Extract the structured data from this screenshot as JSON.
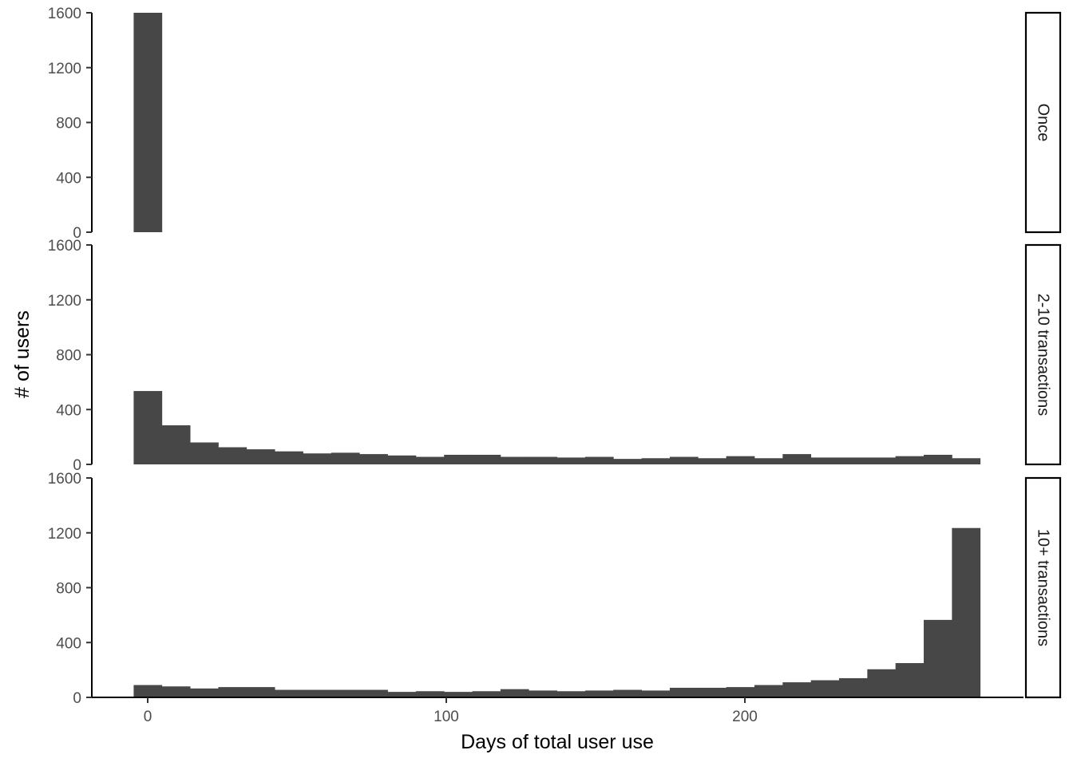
{
  "chart_data": {
    "type": "bar",
    "subtype": "faceted-histogram",
    "xlabel": "Days of total user use",
    "ylabel": "# of users",
    "xlim": [
      -10,
      285
    ],
    "ylim": [
      0,
      1600
    ],
    "x_ticks": [
      0,
      100,
      200
    ],
    "x_tick_labels": [
      "0",
      "100",
      "200"
    ],
    "y_ticks": [
      0,
      400,
      800,
      1200,
      1600
    ],
    "y_tick_labels": [
      "0",
      "400",
      "800",
      "1200",
      "1600"
    ],
    "bin_width": 9.45,
    "first_bin_start": -4.7,
    "grid": false,
    "legend": "none",
    "bar_color": "#474747",
    "facets": [
      {
        "label": "Once",
        "values": [
          1600,
          0,
          0,
          0,
          0,
          0,
          0,
          0,
          0,
          0,
          0,
          0,
          0,
          0,
          0,
          0,
          0,
          0,
          0,
          0,
          0,
          0,
          0,
          0,
          0,
          0,
          0,
          0,
          0,
          0
        ]
      },
      {
        "label": "2-10 transactions",
        "values": [
          535,
          285,
          160,
          125,
          110,
          95,
          80,
          85,
          75,
          65,
          55,
          70,
          70,
          55,
          55,
          50,
          55,
          40,
          45,
          55,
          45,
          60,
          45,
          75,
          50,
          50,
          50,
          60,
          70,
          45
        ]
      },
      {
        "label": "10+ transactions",
        "values": [
          90,
          80,
          65,
          75,
          75,
          55,
          55,
          55,
          55,
          40,
          45,
          40,
          45,
          60,
          50,
          45,
          50,
          55,
          50,
          70,
          70,
          75,
          90,
          110,
          125,
          140,
          205,
          250,
          565,
          1235
        ]
      }
    ]
  }
}
